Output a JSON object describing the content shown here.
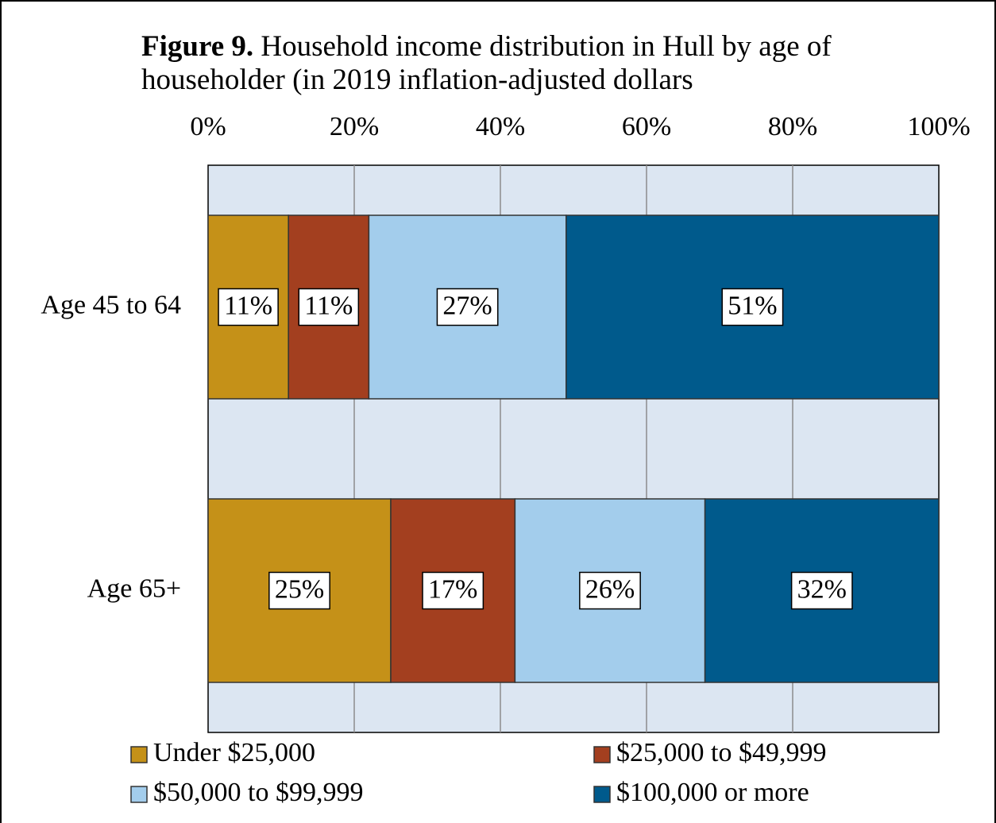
{
  "chart_data": {
    "type": "stacked-bar-horizontal",
    "title_label": "Figure 9.",
    "title": "Household income distribution in Hull by age of householder (in 2019 inflation-adjusted dollars",
    "categories": [
      "Age 45 to 64",
      "Age 65+"
    ],
    "series": [
      {
        "name": "Under $25,000",
        "color": "#c59118",
        "values": [
          11,
          25
        ],
        "value_labels": [
          "11%",
          "25%"
        ]
      },
      {
        "name": "$25,000 to $49,999",
        "color": "#a33f1f",
        "values": [
          11,
          17
        ],
        "value_labels": [
          "11%",
          "17%"
        ]
      },
      {
        "name": "$50,000 to $99,999",
        "color": "#a3cdec",
        "values": [
          27,
          26
        ],
        "value_labels": [
          "27%",
          "26%"
        ]
      },
      {
        "name": "$100,000 or more",
        "color": "#005a8c",
        "values": [
          51,
          32
        ],
        "value_labels": [
          "51%",
          "32%"
        ]
      }
    ],
    "xlim": [
      0,
      100
    ],
    "xticks": [
      {
        "value": 0,
        "label": "0%"
      },
      {
        "value": 20,
        "label": "20%"
      },
      {
        "value": 40,
        "label": "40%"
      },
      {
        "value": 60,
        "label": "60%"
      },
      {
        "value": 80,
        "label": "80%"
      },
      {
        "value": 100,
        "label": "100%"
      }
    ],
    "grid": true,
    "legend": "bottom"
  }
}
